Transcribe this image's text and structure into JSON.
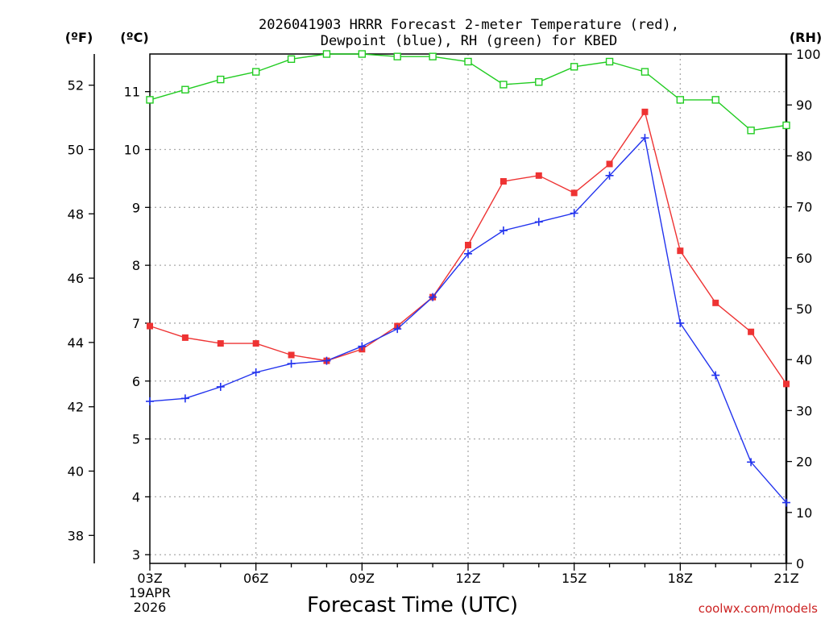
{
  "chart_data": {
    "type": "line",
    "title_line1": "2026041903 HRRR Forecast 2-meter Temperature (red),",
    "title_line2": "Dewpoint (blue), RH (green) for KBED",
    "xlabel": "Forecast Time (UTC)",
    "watermark": "coolwx.com/models",
    "date_line1": "19APR",
    "date_line2": "2026",
    "units": {
      "fahrenheit": "(ºF)",
      "celsius": "(ºC)",
      "rh": "(RH)"
    },
    "x_hours": [
      3,
      4,
      5,
      6,
      7,
      8,
      9,
      10,
      11,
      12,
      13,
      14,
      15,
      16,
      17,
      18,
      19,
      20,
      21
    ],
    "x_tick_labels": [
      "03Z",
      "06Z",
      "09Z",
      "12Z",
      "15Z",
      "18Z",
      "21Z"
    ],
    "x_range": [
      3,
      21
    ],
    "celsius_range": [
      2.85,
      11.65
    ],
    "celsius_ticks": [
      3,
      4,
      5,
      6,
      7,
      8,
      9,
      10,
      11
    ],
    "fahrenheit_ticks": [
      38,
      40,
      42,
      44,
      46,
      48,
      50,
      52
    ],
    "rh_range": [
      0,
      100
    ],
    "rh_ticks": [
      0,
      10,
      20,
      30,
      40,
      50,
      60,
      70,
      80,
      90,
      100
    ],
    "series": [
      {
        "name": "Temperature",
        "color": "#ee3333",
        "marker": "filled-square",
        "axis": "celsius",
        "values": [
          6.95,
          6.75,
          6.65,
          6.65,
          6.45,
          6.35,
          6.55,
          6.95,
          7.45,
          8.35,
          9.45,
          9.55,
          9.25,
          9.75,
          10.65,
          8.25,
          7.35,
          6.85,
          5.95
        ]
      },
      {
        "name": "Dewpoint",
        "color": "#2233ee",
        "marker": "plus",
        "axis": "celsius",
        "values": [
          5.65,
          5.7,
          5.9,
          6.15,
          6.3,
          6.35,
          6.6,
          6.9,
          7.45,
          8.2,
          8.6,
          8.75,
          8.9,
          9.55,
          10.2,
          7.0,
          6.1,
          4.6,
          3.9
        ]
      },
      {
        "name": "RH",
        "color": "#22cc22",
        "marker": "open-square",
        "axis": "rh",
        "values": [
          91,
          93,
          95,
          96.5,
          99,
          100,
          100,
          99.5,
          99.5,
          98.5,
          94,
          94.5,
          97.5,
          98.5,
          96.5,
          91,
          91,
          85,
          86
        ]
      }
    ]
  }
}
